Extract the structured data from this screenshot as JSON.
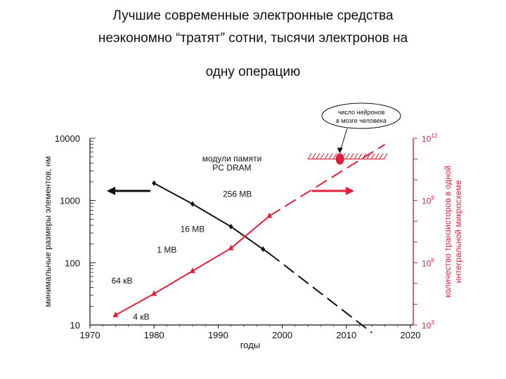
{
  "slide": {
    "title_line1": "Лучшие современные электронные средства",
    "title_line2": "неэкономно “тратят” сотни, тысячи электронов на",
    "title_line3": "одну операцию"
  },
  "colors": {
    "black_series": "#111111",
    "red_series": "#e0203a",
    "neuron_band": "#e0203a"
  },
  "chart_data": {
    "type": "line",
    "title": "",
    "xlabel": "годы",
    "xlim": [
      1970,
      2020
    ],
    "x_ticks": [
      "1970",
      "1980",
      "1990",
      "2000",
      "2010",
      "2020"
    ],
    "ylabel_left": "минимальные размеры элементов, нм",
    "ylim_left": [
      10,
      10000
    ],
    "yscale_left": "log",
    "y_ticks_left": [
      "10",
      "100",
      "1000",
      "10000"
    ],
    "ylabel_right": "количество транзисторов в одной интегральной микросхеме",
    "ylim_right": [
      1000,
      1000000000000
    ],
    "yscale_right": "log",
    "y_ticks_right": [
      {
        "base": "10",
        "exp": "3"
      },
      {
        "base": "10",
        "exp": "6"
      },
      {
        "base": "10",
        "exp": "9"
      },
      {
        "base": "10",
        "exp": "12"
      }
    ],
    "series": [
      {
        "axis": "left",
        "color": "#111111",
        "points": [
          {
            "x": 1980,
            "y": 1900
          },
          {
            "x": 1986,
            "y": 880
          },
          {
            "x": 1992,
            "y": 380
          },
          {
            "x": 1997,
            "y": 165
          }
        ],
        "solid_until": 1998,
        "extrapolation": [
          {
            "x": 1998,
            "y": 140
          },
          {
            "x": 2014,
            "y": 7.5
          }
        ]
      },
      {
        "axis": "right",
        "color": "#e0203a",
        "points": [
          {
            "x": 1974,
            "y": 3000
          },
          {
            "x": 1980,
            "y": 32000
          },
          {
            "x": 1986,
            "y": 400000
          },
          {
            "x": 1992,
            "y": 5000000
          },
          {
            "x": 1998,
            "y": 180000000
          }
        ],
        "solid_until": 1998,
        "extrapolation": [
          {
            "x": 1998,
            "y": 180000000
          },
          {
            "x": 2016,
            "y": 500000000000
          }
        ]
      }
    ],
    "point_labels": [
      {
        "text": "4 кВ",
        "x": 1978,
        "y_right": 1800
      },
      {
        "text": "64 кВ",
        "x": 1975,
        "y_right": 100000
      },
      {
        "text": "1 MB",
        "x": 1982,
        "y_right": 3000000
      },
      {
        "text": "16 MB",
        "x": 1986,
        "y_right": 30000000
      },
      {
        "text": "256 MB",
        "x": 1993,
        "y_right": 1500000000
      }
    ],
    "annotations": {
      "dram_label_line1": "модули памяти",
      "dram_label_line2": "PC DRAM",
      "neuron_callout_line1": "число нейронов",
      "neuron_callout_line2": "в мозге человека",
      "neuron_band": {
        "x_from": 2004,
        "x_to": 2016,
        "y_right": 100000000000
      },
      "neuron_point": {
        "x": 2009,
        "y_right": 100000000000
      }
    },
    "axis_arrows": [
      {
        "series": "black",
        "direction": "left"
      },
      {
        "series": "red",
        "direction": "right"
      }
    ]
  }
}
